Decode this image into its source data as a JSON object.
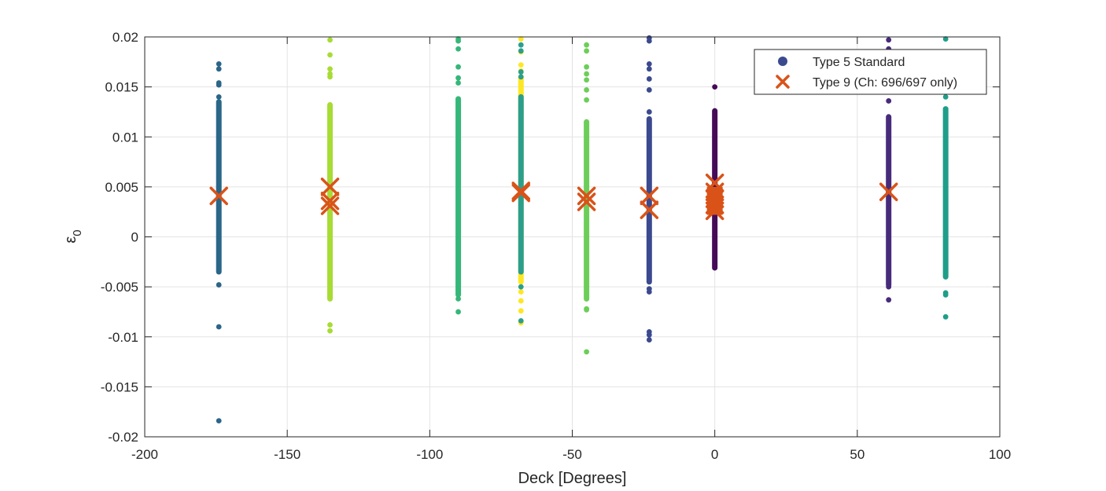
{
  "chart_data": {
    "type": "scatter",
    "title": "",
    "xlabel": "Deck [Degrees]",
    "ylabel": "ε",
    "ylabel_subscript": "0",
    "xlim": [
      -200,
      100
    ],
    "ylim": [
      -0.02,
      0.02
    ],
    "xticks": [
      -200,
      -150,
      -100,
      -50,
      0,
      50,
      100
    ],
    "xtick_labels": [
      "-200",
      "-150",
      "-100",
      "-50",
      "0",
      "50",
      "100"
    ],
    "yticks": [
      -0.02,
      -0.015,
      -0.01,
      -0.005,
      0,
      0.005,
      0.01,
      0.015,
      0.02
    ],
    "ytick_labels": [
      "-0.02",
      "-0.015",
      "-0.01",
      "-0.005",
      "0",
      "0.005",
      "0.01",
      "0.015",
      "0.02"
    ],
    "grid": true,
    "legend_position": "top-right",
    "series": [
      {
        "name": "Type 5 Standard",
        "marker": "dot",
        "legend_color": "#3b4a8f",
        "groups": [
          {
            "x": -174,
            "color": "#2a6688",
            "range": [
              -0.0035,
              0.0135
            ],
            "points": [
              0.0173,
              0.0168,
              0.0154,
              0.0152,
              0.014,
              -0.0048,
              -0.009,
              -0.0184
            ]
          },
          {
            "x": -135,
            "color": "#a8db34",
            "range": [
              -0.0062,
              0.0132
            ],
            "points": [
              0.0197,
              0.0182,
              0.0168,
              0.0163,
              0.016,
              -0.0088,
              -0.0094
            ]
          },
          {
            "x": -90,
            "color": "#35b779",
            "range": [
              -0.0058,
              0.0138
            ],
            "points": [
              0.0198,
              0.0196,
              0.0188,
              0.017,
              0.0159,
              0.0154,
              -0.0062,
              -0.0075
            ]
          },
          {
            "x": -68,
            "color": "#fde725",
            "range": [
              -0.0045,
              0.016
            ],
            "points": [
              0.0198,
              0.0185,
              0.0172,
              0.0166,
              0.0155,
              -0.0055,
              -0.0064,
              -0.0074,
              -0.0085,
              -0.0086
            ]
          },
          {
            "x": -68,
            "color": "#2c9f8c",
            "range": [
              -0.0035,
              0.014
            ],
            "points": [
              0.0192,
              0.0186,
              0.0165,
              0.016,
              0.0125,
              -0.005,
              -0.0084
            ]
          },
          {
            "x": -45,
            "color": "#6cce59",
            "range": [
              -0.0062,
              0.0115
            ],
            "points": [
              0.0192,
              0.0186,
              0.017,
              0.0163,
              0.0157,
              0.0147,
              0.0137,
              -0.0072,
              -0.0073,
              -0.0115
            ]
          },
          {
            "x": -23,
            "color": "#3b4a8f",
            "range": [
              -0.0045,
              0.0118
            ],
            "points": [
              0.0199,
              0.0196,
              0.0173,
              0.0168,
              0.0158,
              0.0147,
              0.0125,
              -0.0052,
              -0.0055,
              -0.0095,
              -0.0098,
              -0.0103
            ]
          },
          {
            "x": 0,
            "color": "#450b57",
            "range": [
              -0.0031,
              0.0126
            ],
            "points": [
              0.015
            ]
          },
          {
            "x": 61,
            "color": "#472b7b",
            "range": [
              -0.0048,
              0.012
            ],
            "points": [
              0.0197,
              0.0188,
              0.0179,
              0.0165,
              0.0155,
              0.0145,
              0.0136,
              -0.005,
              -0.0063
            ]
          },
          {
            "x": 81,
            "color": "#1f9e8a",
            "range": [
              -0.004,
              0.0128
            ],
            "points": [
              0.0198,
              0.0185,
              0.0175,
              0.0165,
              0.0152,
              0.014,
              -0.0056,
              -0.0058,
              -0.008
            ]
          }
        ]
      },
      {
        "name": "Type 9 (Ch: 696/697 only)",
        "marker": "x",
        "color": "#d95319",
        "points": [
          {
            "x": -174,
            "y": 0.0041
          },
          {
            "x": -135,
            "y": 0.005
          },
          {
            "x": -135,
            "y": 0.0036
          },
          {
            "x": -135,
            "y": 0.0031
          },
          {
            "x": -68,
            "y": 0.0046
          },
          {
            "x": -68,
            "y": 0.0044
          },
          {
            "x": -45,
            "y": 0.0041
          },
          {
            "x": -45,
            "y": 0.0035
          },
          {
            "x": -23,
            "y": 0.0041
          },
          {
            "x": -23,
            "y": 0.0027
          },
          {
            "x": 0,
            "y": 0.0054
          },
          {
            "x": 0,
            "y": 0.0045
          },
          {
            "x": 0,
            "y": 0.0038
          },
          {
            "x": 0,
            "y": 0.0032
          },
          {
            "x": 0,
            "y": 0.0026
          },
          {
            "x": 61,
            "y": 0.0045
          }
        ]
      }
    ]
  }
}
